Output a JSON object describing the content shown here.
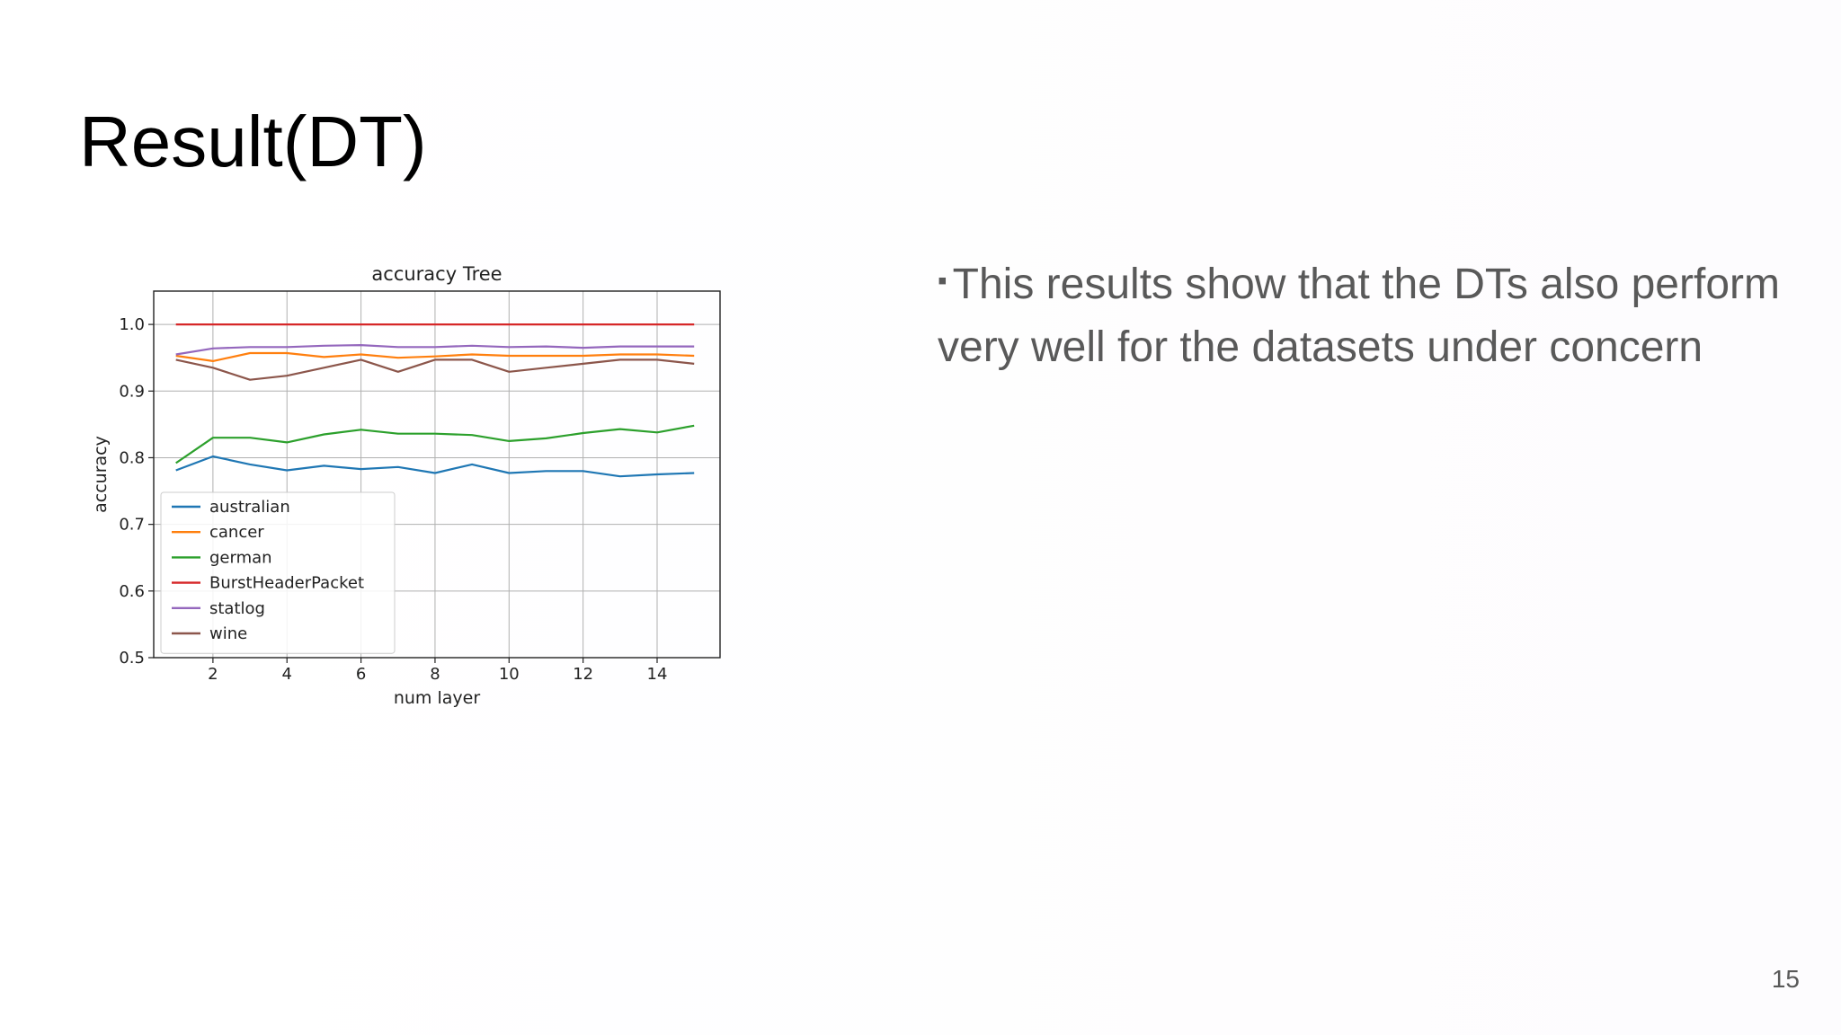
{
  "slide": {
    "title": "Result(DT)",
    "bullet_mark": "▪",
    "bullet_text": "This results show that the DTs also perform very well for the datasets under concern",
    "page_number": "15"
  },
  "chart_data": {
    "type": "line",
    "title": "accuracy Tree",
    "xlabel": "num layer",
    "ylabel": "accuracy",
    "xlim": [
      0.4,
      15.7
    ],
    "ylim": [
      0.5,
      1.05
    ],
    "xticks": [
      2,
      4,
      6,
      8,
      10,
      12,
      14
    ],
    "yticks": [
      0.5,
      0.6,
      0.7,
      0.8,
      0.9,
      1.0
    ],
    "ytick_labels": [
      "0.5",
      "0.6",
      "0.7",
      "0.8",
      "0.9",
      "1.0"
    ],
    "grid": true,
    "legend_position": "lower-left",
    "x": [
      1,
      2,
      3,
      4,
      5,
      6,
      7,
      8,
      9,
      10,
      11,
      12,
      13,
      14,
      15
    ],
    "series": [
      {
        "name": "australian",
        "color": "#1f77b4",
        "values": [
          0.781,
          0.802,
          0.79,
          0.781,
          0.788,
          0.783,
          0.786,
          0.777,
          0.79,
          0.777,
          0.78,
          0.78,
          0.772,
          0.775,
          0.777
        ]
      },
      {
        "name": "cancer",
        "color": "#ff7f0e",
        "values": [
          0.953,
          0.945,
          0.957,
          0.957,
          0.951,
          0.955,
          0.95,
          0.952,
          0.955,
          0.953,
          0.953,
          0.953,
          0.955,
          0.955,
          0.953
        ]
      },
      {
        "name": "german",
        "color": "#2ca02c",
        "values": [
          0.792,
          0.83,
          0.83,
          0.823,
          0.835,
          0.842,
          0.836,
          0.836,
          0.834,
          0.825,
          0.829,
          0.837,
          0.843,
          0.838,
          0.848
        ]
      },
      {
        "name": "BurstHeaderPacket",
        "color": "#d62728",
        "values": [
          1.0,
          1.0,
          1.0,
          1.0,
          1.0,
          1.0,
          1.0,
          1.0,
          1.0,
          1.0,
          1.0,
          1.0,
          1.0,
          1.0,
          1.0
        ]
      },
      {
        "name": "statlog",
        "color": "#9467bd",
        "values": [
          0.955,
          0.964,
          0.966,
          0.966,
          0.968,
          0.969,
          0.966,
          0.966,
          0.968,
          0.966,
          0.967,
          0.965,
          0.967,
          0.967,
          0.967
        ]
      },
      {
        "name": "wine",
        "color": "#8c564b",
        "values": [
          0.947,
          0.935,
          0.917,
          0.923,
          0.935,
          0.947,
          0.929,
          0.947,
          0.947,
          0.929,
          0.935,
          0.941,
          0.947,
          0.947,
          0.941
        ]
      }
    ]
  }
}
